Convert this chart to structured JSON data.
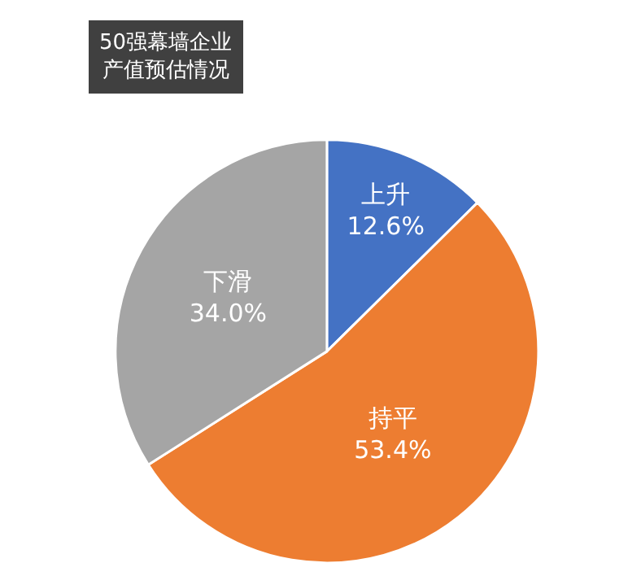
{
  "chart_data": {
    "type": "pie",
    "title": "50强幕墙企业产值预估情况",
    "categories": [
      "上升",
      "持平",
      "下滑"
    ],
    "values": [
      12.6,
      53.4,
      34.0
    ],
    "value_labels": [
      "12.6%",
      "53.4%",
      "34.0%"
    ],
    "colors": [
      "#4472c4",
      "#ed7d31",
      "#a5a5a5"
    ],
    "legend": false
  }
}
